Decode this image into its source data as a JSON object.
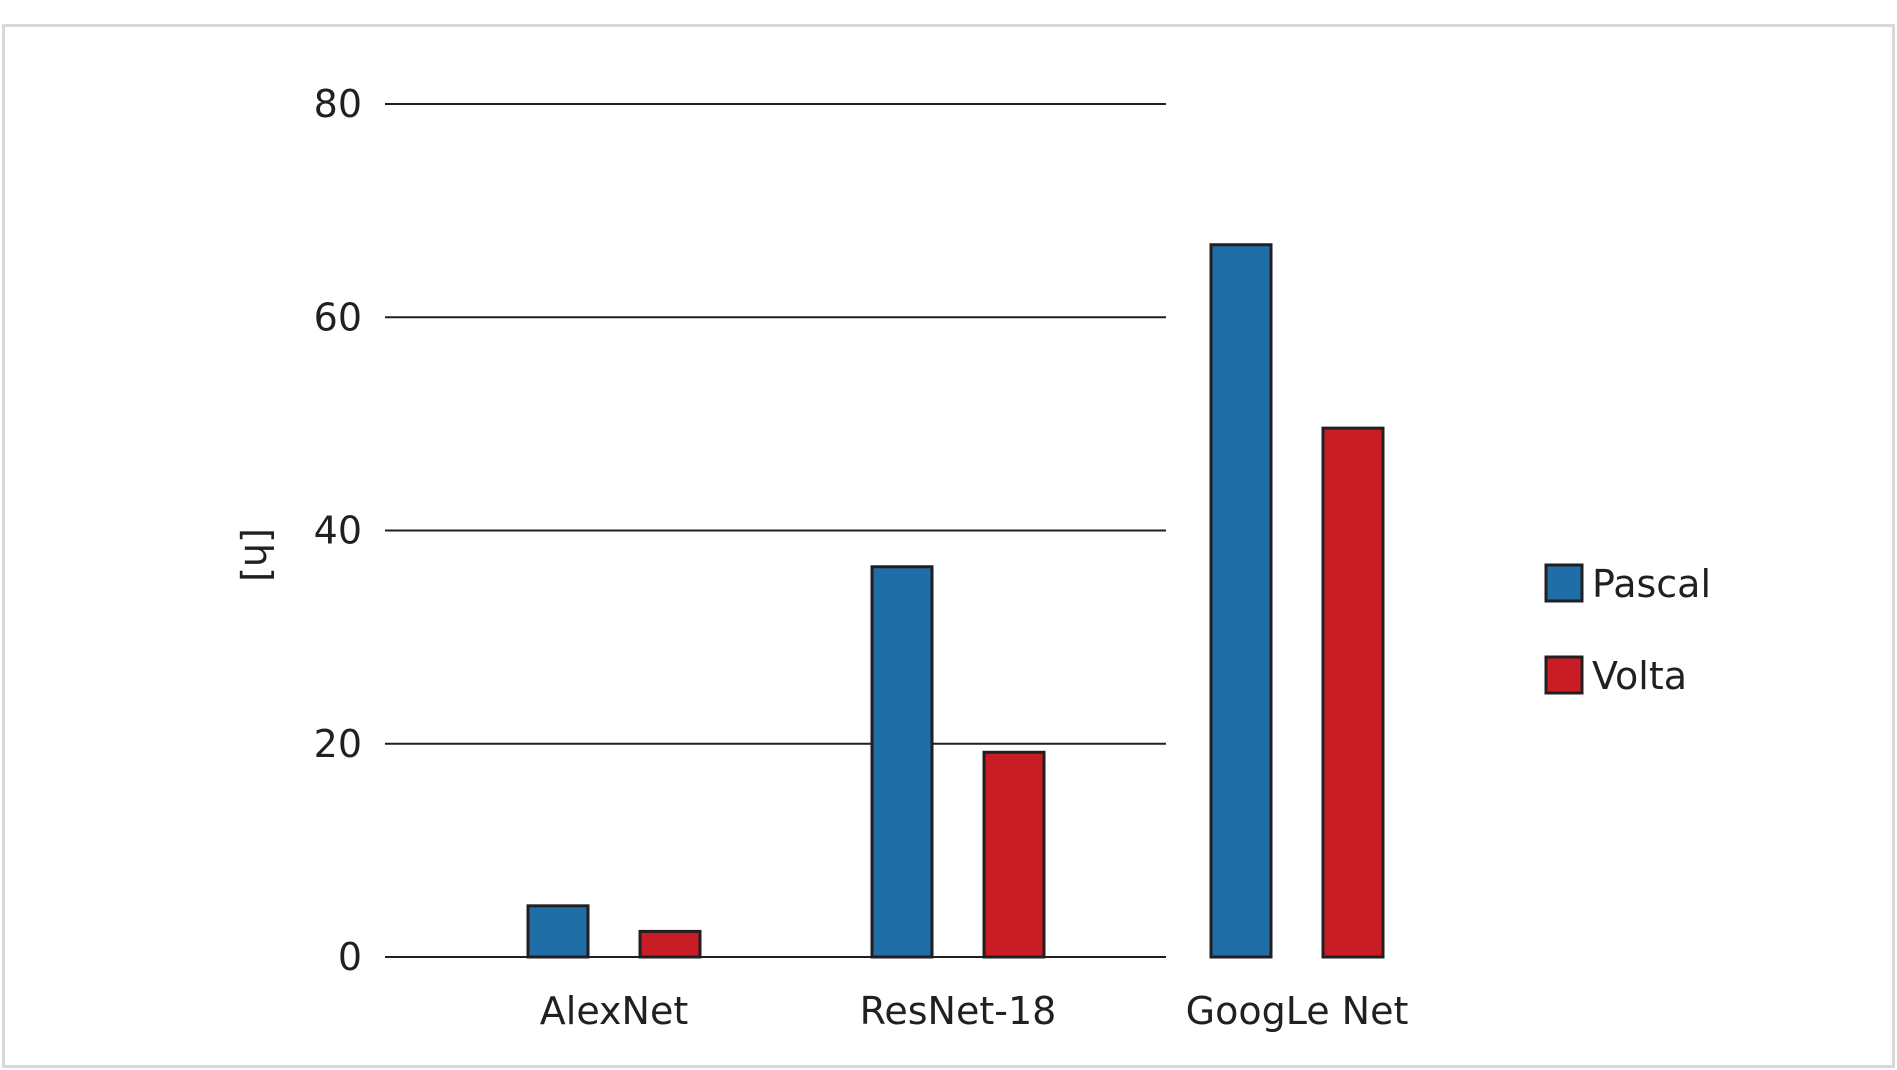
{
  "chart_data": {
    "type": "bar",
    "title": "",
    "xlabel": "",
    "ylabel": "[h]",
    "categories": [
      "AlexNet",
      "ResNet-18",
      "GoogLe Net"
    ],
    "series": [
      {
        "name": "Pascal",
        "color": "#1f6ea8",
        "values": [
          4.8,
          36.6,
          66.8
        ]
      },
      {
        "name": "Volta",
        "color": "#c91d25",
        "values": [
          2.4,
          19.2,
          49.6
        ]
      }
    ],
    "ylim": [
      0,
      80
    ],
    "yticks": [
      0,
      20,
      40,
      60,
      80
    ],
    "grid": true,
    "legend_position": "right"
  }
}
